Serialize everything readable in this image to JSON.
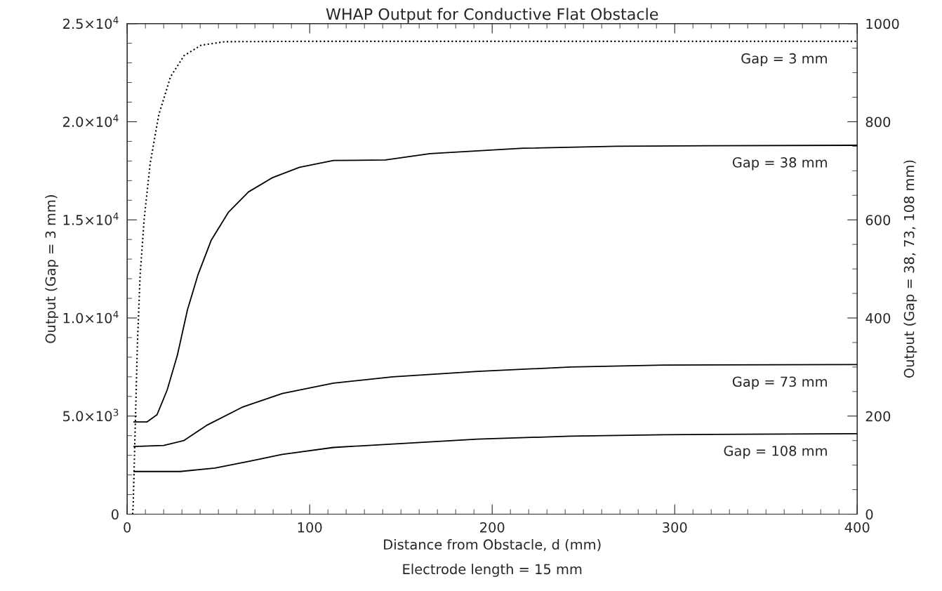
{
  "chart_data": {
    "type": "line",
    "title": "WHAP Output for Conductive Flat Obstacle",
    "xlabel": "Distance from Obstacle, d (mm)",
    "ylabel": "Output (Gap = 3 mm)",
    "y2label": "Output (Gap = 38, 73, 108 mm)",
    "annotations": [
      "Electrode length = 15 mm"
    ],
    "xlim": [
      0,
      400
    ],
    "xticks": [
      0,
      100,
      200,
      300,
      400
    ],
    "ylim": [
      0,
      25000
    ],
    "yticks": [
      0,
      {
        "value": 5000,
        "label": "5.0×10$^{3}$"
      },
      {
        "value": 10000,
        "label": "1.0×10$^{4}$"
      },
      {
        "value": 15000,
        "label": "1.5×10$^{4}$"
      },
      {
        "value": 20000,
        "label": "2.0×10$^{4}$"
      },
      {
        "value": 25000,
        "label": "2.5×10$^{4}$"
      }
    ],
    "y2lim": [
      0,
      1000
    ],
    "y2ticks": [
      0,
      200,
      400,
      600,
      800,
      1000
    ],
    "grid": false,
    "legend": false,
    "marker": "none",
    "series": [
      {
        "name": "Gap = 3 mm",
        "color": "#000000",
        "line_style": "dotted",
        "x": [
          3,
          3.3,
          4.3,
          5.6,
          7.1,
          9.3,
          12.6,
          17.3,
          23.8,
          31.2,
          40.5,
          53.5,
          100,
          200,
          300,
          400
        ],
        "values": [
          0,
          480,
          4030,
          8640,
          12190,
          15030,
          17870,
          20350,
          22300,
          23370,
          23900,
          24080,
          24100,
          24100,
          24100,
          24100
        ]
      },
      {
        "name": "Gap = 38 mm",
        "color": "#000000",
        "line_style": "solid",
        "axis": "y2",
        "x": [
          3.7,
          10.8,
          16.4,
          21.9,
          27.5,
          33,
          38.7,
          46,
          55.4,
          66.5,
          79.6,
          94.4,
          113,
          141.5,
          166,
          217,
          268,
          319,
          400
        ],
        "values": [
          188,
          188,
          203,
          253,
          324,
          416,
          487,
          558,
          615,
          657,
          686,
          707,
          721,
          722,
          735,
          746,
          750,
          751,
          752
        ]
      },
      {
        "name": "Gap = 73 mm",
        "color": "#000000",
        "line_style": "solid",
        "axis": "y2",
        "x": [
          3.7,
          20,
          31,
          44,
          63,
          85,
          113,
          145.5,
          192,
          243,
          294,
          400
        ],
        "values": [
          138,
          140,
          150,
          182,
          218,
          246,
          267,
          280,
          291,
          300,
          304,
          305
        ]
      },
      {
        "name": "Gap = 108 mm",
        "color": "#000000",
        "line_style": "solid",
        "axis": "y2",
        "x": [
          3.7,
          29,
          48,
          67,
          85,
          113,
          145.5,
          192,
          243,
          294,
          400
        ],
        "values": [
          87,
          87,
          94,
          108,
          122,
          136,
          143,
          153,
          159,
          162,
          164
        ]
      }
    ]
  }
}
